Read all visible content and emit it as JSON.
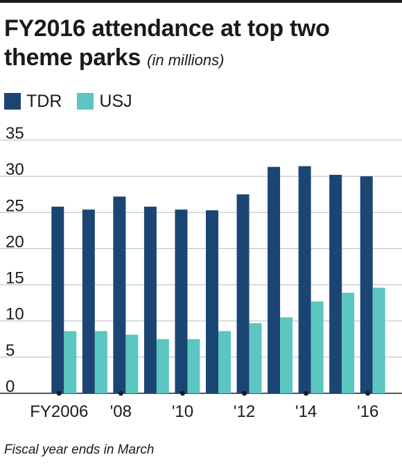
{
  "title": "FY2016 attendance at top two theme parks",
  "subtitle": "(in millions)",
  "legend": [
    {
      "name": "TDR",
      "color": "#1b4573"
    },
    {
      "name": "USJ",
      "color": "#5cc6c0"
    }
  ],
  "footnote": "Fiscal year ends in March",
  "chart_data": {
    "type": "bar",
    "categories": [
      "FY2006",
      "FY2007",
      "FY2008",
      "FY2009",
      "FY2010",
      "FY2011",
      "FY2012",
      "FY2013",
      "FY2014",
      "FY2015",
      "FY2016"
    ],
    "tick_labels": [
      "FY2006",
      "",
      "'08",
      "",
      "'10",
      "",
      "'12",
      "",
      "'14",
      "",
      "'16"
    ],
    "series": [
      {
        "name": "TDR",
        "color": "#1b4573",
        "values": [
          25.8,
          25.4,
          27.2,
          25.8,
          25.4,
          25.3,
          27.5,
          31.3,
          31.4,
          30.2,
          30.0
        ]
      },
      {
        "name": "USJ",
        "color": "#5cc6c0",
        "values": [
          8.6,
          8.6,
          8.1,
          7.5,
          7.5,
          8.6,
          9.7,
          10.5,
          12.7,
          13.9,
          14.6
        ]
      }
    ],
    "ylim": [
      0,
      35
    ],
    "yticks": [
      0,
      5,
      10,
      15,
      20,
      25,
      30,
      35
    ],
    "grid": true,
    "legend_position": "top-left"
  }
}
